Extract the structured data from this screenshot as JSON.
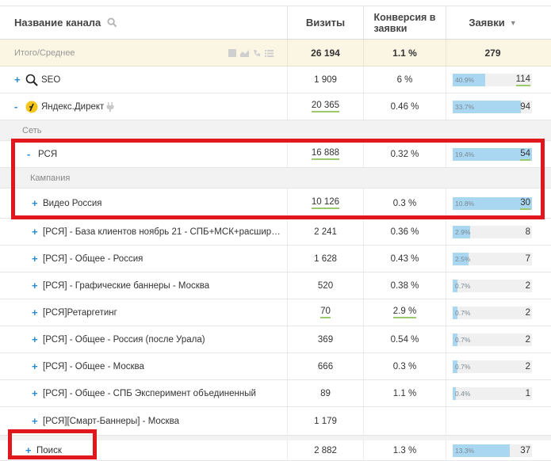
{
  "header": {
    "channel_name": "Название канала",
    "visits": "Визиты",
    "conversion_line1": "Конверсия в",
    "conversion_line2": "заявки",
    "requests": "Заявки",
    "sort_arrow": "▼"
  },
  "totals": {
    "label": "Итого/Среднее",
    "visits": "26 194",
    "conversion": "1.1 %",
    "requests": "279"
  },
  "rows": [
    {
      "expander": "+",
      "label": "SEO",
      "visits": "1 909",
      "conversion": "6 %",
      "pct": "40.9%",
      "fill": 0.409,
      "requests": "114",
      "underline_req": true
    },
    {
      "expander": "-",
      "label": "Яндекс.Директ",
      "visits": "20 365",
      "conversion": "0.46 %",
      "pct": "33.7%",
      "fill": 0.86,
      "requests": "94"
    },
    {
      "label": "Сеть"
    },
    {
      "expander": "-",
      "label": "РСЯ",
      "visits": "16 888",
      "conversion": "0.32 %",
      "pct": "19.4%",
      "fill": 1.0,
      "requests": "54",
      "underline_req": true
    },
    {
      "label": "Кампания"
    },
    {
      "expander": "+",
      "label": "Видео Россия",
      "visits": "10 126",
      "conversion": "0.3 %",
      "pct": "10.8%",
      "fill": 1.0,
      "requests": "30",
      "underline_req": true
    },
    {
      "expander": "+",
      "label": "[РСЯ] - База клиентов ноябрь 21 - СПБ+МСК+расширен...",
      "visits": "2 241",
      "conversion": "0.36 %",
      "pct": "2.9%",
      "fill": 0.22,
      "requests": "8"
    },
    {
      "expander": "+",
      "label": "[РСЯ] - Общее - Россия",
      "visits": "1 628",
      "conversion": "0.43 %",
      "pct": "2.5%",
      "fill": 0.2,
      "requests": "7"
    },
    {
      "expander": "+",
      "label": "[РСЯ] - Графические баннеры - Москва",
      "visits": "520",
      "conversion": "0.38 %",
      "pct": "0.7%",
      "fill": 0.06,
      "requests": "2"
    },
    {
      "expander": "+",
      "label": "[РСЯ]Ретаргетинг",
      "visits": "70",
      "conversion": "2.9 %",
      "pct": "0.7%",
      "fill": 0.06,
      "requests": "2"
    },
    {
      "expander": "+",
      "label": "[РСЯ] - Общее - Россия (после Урала)",
      "visits": "369",
      "conversion": "0.54 %",
      "pct": "0.7%",
      "fill": 0.06,
      "requests": "2"
    },
    {
      "expander": "+",
      "label": " [РСЯ] - Общее - Москва",
      "visits": "666",
      "conversion": "0.3 %",
      "pct": "0.7%",
      "fill": 0.06,
      "requests": "2"
    },
    {
      "expander": "+",
      "label": "[РСЯ] - Общее - СПБ Эксперимент объединенный",
      "visits": "89",
      "conversion": "1.1 %",
      "pct": "0.4%",
      "fill": 0.04,
      "requests": "1"
    },
    {
      "expander": "+",
      "label": "[РСЯ][Смарт-Баннеры] - Москва",
      "visits": "1 179",
      "conversion": "",
      "pct": "",
      "fill": 0,
      "requests": ""
    },
    {
      "expander": "+",
      "label": "Поиск",
      "visits": "2 882",
      "conversion": "1.3 %",
      "pct": "13.3%",
      "fill": 0.72,
      "requests": "37"
    }
  ],
  "icons": {
    "search": "search-icon",
    "seo": "magnifier-icon",
    "yandex": "yandex-direct-icon",
    "plug": "plug-icon",
    "table_tools": [
      "grid-icon",
      "chart-icon",
      "phone-icon",
      "list-icon"
    ]
  },
  "colors": {
    "accent_blue": "#2a8ccf",
    "bar_fill": "#a9d6f0",
    "underline_green": "#9cc86e",
    "highlight_red": "#e0171d",
    "totals_bg": "#fbf6e3"
  }
}
